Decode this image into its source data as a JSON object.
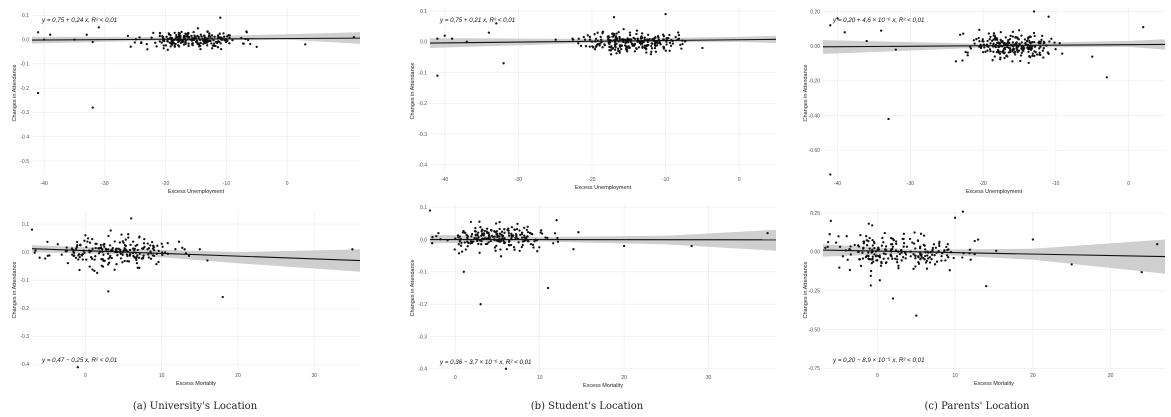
{
  "captions": [
    "(a) University's Location",
    "(b) Student's Location",
    "(c) Parents' Location"
  ],
  "chart_data": [
    {
      "id": "a-top",
      "type": "scatter",
      "title": "",
      "xlabel": "Excess Unemployment",
      "ylabel": "Changes in Attendance",
      "xlim": [
        -42,
        12
      ],
      "ylim": [
        -0.57,
        0.13
      ],
      "xticks": [
        -40,
        -30,
        -20,
        -10,
        0
      ],
      "xtick_labels": [
        "-40",
        "-30",
        "-20",
        "-10",
        "0"
      ],
      "yticks": [
        0.1,
        0.0,
        -0.1,
        -0.2,
        -0.3,
        -0.4,
        -0.5
      ],
      "ytick_labels": [
        "0.1",
        "0.0",
        "-0.1",
        "-0.2",
        "-0.3",
        "-0.4",
        "-0.5"
      ],
      "annotation": "y = 0,75 + 0,24 x,  R² < 0,01",
      "annotation_pos": "top-left",
      "fit": {
        "x": [
          -42,
          12
        ],
        "y": [
          -0.002,
          0.006
        ]
      },
      "band": {
        "x": [
          -42,
          -20,
          0,
          12
        ],
        "upper": [
          0.012,
          0.01,
          0.022,
          0.03
        ],
        "lower": [
          -0.016,
          -0.004,
          0.0,
          -0.018
        ]
      },
      "cluster": {
        "n": 230,
        "cx": -15.5,
        "cy": 0.0,
        "sx": 3.8,
        "sy": 0.017,
        "seed": 11
      },
      "extra": [
        [
          -41,
          0.03
        ],
        [
          -40,
          0.0
        ],
        [
          -39,
          0.02
        ],
        [
          -35,
          0.0
        ],
        [
          -33,
          0.02
        ],
        [
          -32,
          -0.01
        ],
        [
          -31,
          0.05
        ],
        [
          -41,
          -0.22
        ],
        [
          -32,
          -0.28
        ],
        [
          -11,
          0.09
        ],
        [
          -23,
          -0.04
        ],
        [
          -5,
          -0.03
        ],
        [
          3,
          -0.02
        ],
        [
          11,
          0.01
        ]
      ]
    },
    {
      "id": "a-bottom",
      "type": "scatter",
      "title": "",
      "xlabel": "Excess Mortality",
      "ylabel": "Changes in Attendance",
      "xlim": [
        -7,
        36
      ],
      "ylim": [
        -0.42,
        0.15
      ],
      "xticks": [
        0,
        10,
        20,
        30
      ],
      "xtick_labels": [
        "0",
        "10",
        "20",
        "30"
      ],
      "yticks": [
        0.1,
        0.0,
        -0.1,
        -0.2,
        -0.3,
        -0.4
      ],
      "ytick_labels": [
        "0.1",
        "0.0",
        "-0.1",
        "-0.2",
        "-0.3",
        "-0.4"
      ],
      "annotation": "y = 0,47 − 0,25 x,  R² < 0,01",
      "annotation_pos": "bottom-left",
      "fit": {
        "x": [
          -7,
          36
        ],
        "y": [
          0.012,
          -0.03
        ]
      },
      "band": {
        "x": [
          -7,
          5,
          20,
          36
        ],
        "upper": [
          0.025,
          0.012,
          0.0,
          0.01
        ],
        "lower": [
          0.0,
          -0.008,
          -0.04,
          -0.07
        ]
      },
      "cluster": {
        "n": 210,
        "cx": 3.5,
        "cy": 0.0,
        "sx": 4.0,
        "sy": 0.025,
        "seed": 23
      },
      "extra": [
        [
          -7,
          0.08
        ],
        [
          -6,
          -0.02
        ],
        [
          0,
          0.06
        ],
        [
          6,
          0.12
        ],
        [
          13,
          0.01
        ],
        [
          18,
          -0.16
        ],
        [
          3,
          -0.14
        ],
        [
          -1,
          -0.41
        ],
        [
          15,
          0.01
        ],
        [
          16,
          -0.03
        ],
        [
          10,
          0.03
        ],
        [
          35,
          0.01
        ]
      ]
    },
    {
      "id": "b-top",
      "type": "scatter",
      "title": "",
      "xlabel": "Excess Unemployment",
      "ylabel": "Changes in Attendance",
      "xlim": [
        -42,
        5
      ],
      "ylim": [
        -0.43,
        0.11
      ],
      "xticks": [
        -40,
        -30,
        -20,
        -10,
        0
      ],
      "xtick_labels": [
        "-40",
        "-30",
        "-20",
        "-10",
        "0"
      ],
      "yticks": [
        0.1,
        0.0,
        -0.1,
        -0.2,
        -0.3,
        -0.4
      ],
      "ytick_labels": [
        "0.1",
        "0.0",
        "-0.1",
        "-0.2",
        "-0.3",
        "-0.4"
      ],
      "annotation": "y = 0,75 + 0,21 x,  R² < 0,01",
      "annotation_pos": "top-left",
      "fit": {
        "x": [
          -42,
          5
        ],
        "y": [
          -0.004,
          0.008
        ]
      },
      "band": {
        "x": [
          -42,
          -20,
          0,
          5
        ],
        "upper": [
          0.012,
          0.009,
          0.016,
          0.02
        ],
        "lower": [
          -0.02,
          -0.004,
          0.0,
          -0.004
        ]
      },
      "cluster": {
        "n": 240,
        "cx": -15,
        "cy": 0.0,
        "sx": 3.2,
        "sy": 0.017,
        "seed": 37
      },
      "extra": [
        [
          -41,
          0.01
        ],
        [
          -40,
          0.02
        ],
        [
          -39,
          0.01
        ],
        [
          -37,
          0.0
        ],
        [
          -34,
          0.03
        ],
        [
          -33,
          0.06
        ],
        [
          -41,
          -0.11
        ],
        [
          -32,
          -0.07
        ],
        [
          -10,
          0.09
        ],
        [
          -17,
          0.08
        ],
        [
          -5,
          -0.02
        ],
        [
          -12,
          -0.04
        ],
        [
          -8,
          -0.01
        ]
      ]
    },
    {
      "id": "b-bottom",
      "type": "scatter",
      "title": "",
      "xlabel": "Excess Mortality",
      "ylabel": "Changes in Attendance",
      "xlim": [
        -3,
        38
      ],
      "ylim": [
        -0.41,
        0.11
      ],
      "xticks": [
        0,
        10,
        20,
        30
      ],
      "xtick_labels": [
        "0",
        "10",
        "20",
        "30"
      ],
      "yticks": [
        0.1,
        0.0,
        -0.1,
        -0.2,
        -0.3,
        -0.4
      ],
      "ytick_labels": [
        "0.1",
        "0.0",
        "-0.1",
        "-0.2",
        "-0.3",
        "-0.4"
      ],
      "annotation": "y = 0,36 − 3,7 × 10⁻⁶ x,  R² < 0,01",
      "annotation_pos": "bottom-left",
      "fit": {
        "x": [
          -3,
          38
        ],
        "y": [
          0.0,
          -0.001
        ]
      },
      "band": {
        "x": [
          -3,
          10,
          25,
          38
        ],
        "upper": [
          0.015,
          0.008,
          0.012,
          0.03
        ],
        "lower": [
          -0.012,
          -0.006,
          -0.015,
          -0.035
        ]
      },
      "cluster": {
        "n": 220,
        "cx": 5,
        "cy": 0.005,
        "sx": 3.5,
        "sy": 0.02,
        "seed": 53
      },
      "extra": [
        [
          -3,
          0.09
        ],
        [
          -2,
          0.02
        ],
        [
          12,
          0.06
        ],
        [
          14,
          -0.03
        ],
        [
          11,
          -0.15
        ],
        [
          3,
          -0.2
        ],
        [
          1,
          -0.1
        ],
        [
          6,
          -0.4
        ],
        [
          20,
          -0.02
        ],
        [
          28,
          -0.02
        ],
        [
          37,
          0.02
        ]
      ]
    },
    {
      "id": "c-top",
      "type": "scatter",
      "title": "",
      "xlabel": "Excess Unemployment",
      "ylabel": "Changes in Attendance",
      "xlim": [
        -42,
        5
      ],
      "ylim": [
        -0.76,
        0.22
      ],
      "xticks": [
        -40,
        -30,
        -20,
        -10,
        0
      ],
      "xtick_labels": [
        "-40",
        "-30",
        "-20",
        "-10",
        "0"
      ],
      "yticks": [
        0.2,
        0.0,
        -0.2,
        -0.4,
        -0.6
      ],
      "ytick_labels": [
        "0.20",
        "0.00",
        "-0.20",
        "-0.40",
        "-0.60"
      ],
      "annotation": "y = 0,20 + 4,6 × 10⁻⁶ x,  R² < 0,01",
      "annotation_pos": "top-left",
      "fit": {
        "x": [
          -42,
          5
        ],
        "y": [
          -0.004,
          0.01
        ]
      },
      "band": {
        "x": [
          -42,
          -20,
          0,
          5
        ],
        "upper": [
          0.035,
          0.014,
          0.03,
          0.04
        ],
        "lower": [
          -0.045,
          -0.008,
          -0.004,
          -0.02
        ]
      },
      "cluster": {
        "n": 240,
        "cx": -16,
        "cy": 0.0,
        "sx": 3.2,
        "sy": 0.04,
        "seed": 71
      },
      "extra": [
        [
          -41,
          0.12
        ],
        [
          -40,
          0.16
        ],
        [
          -39,
          0.08
        ],
        [
          -36,
          0.03
        ],
        [
          -34,
          0.09
        ],
        [
          -32,
          -0.02
        ],
        [
          -41,
          -0.74
        ],
        [
          -33,
          -0.42
        ],
        [
          -13,
          0.2
        ],
        [
          -11,
          0.17
        ],
        [
          -5,
          -0.06
        ],
        [
          2,
          0.11
        ],
        [
          -3,
          -0.18
        ]
      ]
    },
    {
      "id": "c-bottom",
      "type": "scatter",
      "title": "",
      "xlabel": "Excess Mortality",
      "ylabel": "Changes in Attendance",
      "xlim": [
        -7,
        37
      ],
      "ylim": [
        -0.76,
        0.27
      ],
      "xticks": [
        0,
        10,
        20,
        30
      ],
      "xtick_labels": [
        "0",
        "10",
        "20",
        "30"
      ],
      "yticks": [
        0.25,
        0.0,
        -0.25,
        -0.5,
        -0.75
      ],
      "ytick_labels": [
        "0.25",
        "0.00",
        "-0.25",
        "-0.50",
        "-0.75"
      ],
      "annotation": "y = 0,20 − 8,9 × 10⁻⁵ x,  R² < 0,01",
      "annotation_pos": "bottom-left",
      "fit": {
        "x": [
          -7,
          37
        ],
        "y": [
          0.012,
          -0.03
        ]
      },
      "band": {
        "x": [
          -7,
          5,
          20,
          37
        ],
        "upper": [
          0.05,
          0.015,
          0.02,
          0.08
        ],
        "lower": [
          -0.03,
          -0.01,
          -0.05,
          -0.14
        ]
      },
      "cluster": {
        "n": 220,
        "cx": 3,
        "cy": 0.0,
        "sx": 4.5,
        "sy": 0.06,
        "seed": 89
      },
      "extra": [
        [
          -6,
          0.2
        ],
        [
          -5,
          0.1
        ],
        [
          10,
          0.22
        ],
        [
          11,
          0.26
        ],
        [
          12,
          -0.05
        ],
        [
          14,
          -0.22
        ],
        [
          2,
          -0.3
        ],
        [
          5,
          -0.41
        ],
        [
          20,
          0.08
        ],
        [
          25,
          -0.08
        ],
        [
          34,
          -0.13
        ],
        [
          36,
          0.05
        ]
      ]
    }
  ]
}
